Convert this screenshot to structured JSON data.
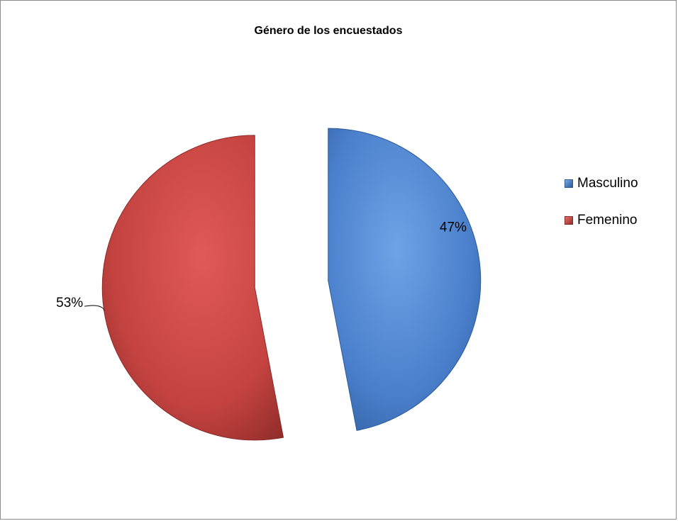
{
  "chart_data": {
    "type": "pie",
    "title": "Género de los encuestados",
    "series": [
      {
        "name": "Masculino",
        "value": 47,
        "label": "47%",
        "color": "#4f81bd"
      },
      {
        "name": "Femenino",
        "value": 53,
        "label": "53%",
        "color": "#c0504d"
      }
    ],
    "legend_position": "right",
    "exploded": true
  }
}
